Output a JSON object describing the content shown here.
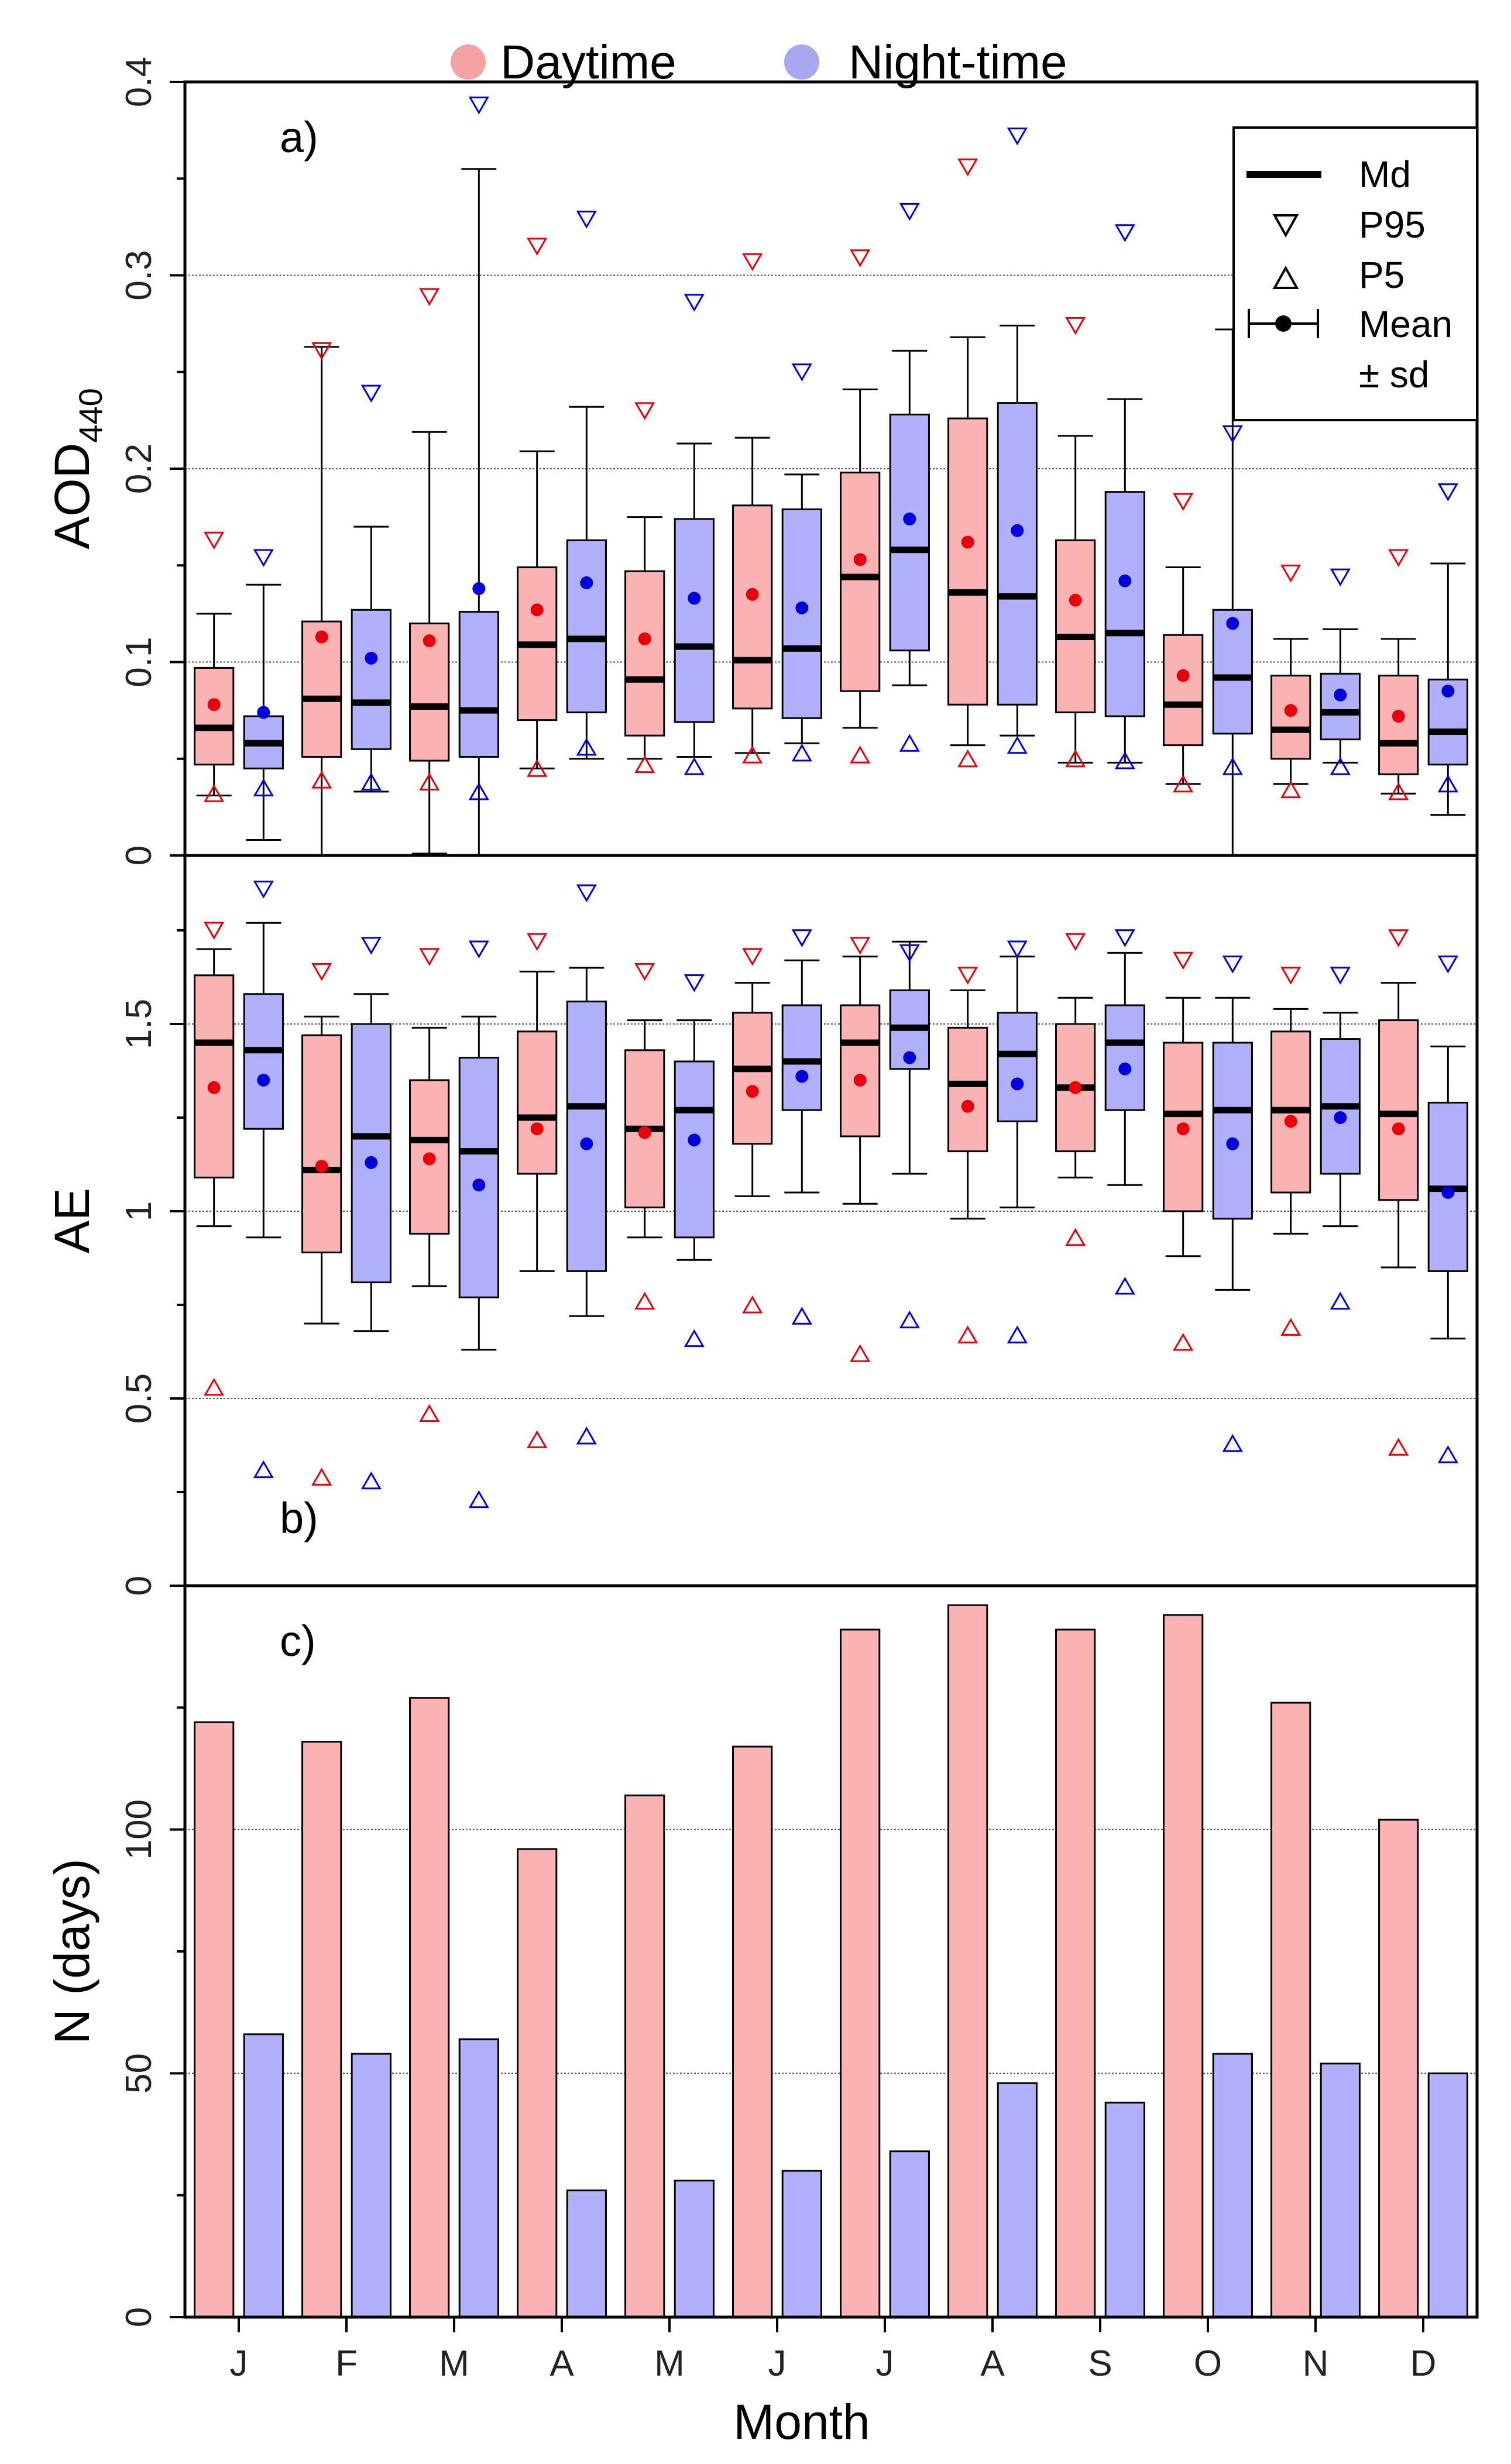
{
  "legend": {
    "daytime": "Daytime",
    "nighttime": "Night-time",
    "daytime_color": "#f4a3a3",
    "nighttime_color": "#a8a8f0",
    "day_mark_color": "#e8000b",
    "night_mark_color": "#0000dd",
    "md": "Md",
    "p95": "P95",
    "p5": "P5",
    "mean": "Mean",
    "sd": "± sd"
  },
  "xlabel": "Month",
  "chart_data": [
    {
      "id": "a",
      "type": "box",
      "panel_label": "a)",
      "ylabel_main": "AOD",
      "ylabel_sub": "440",
      "ylim": [
        0,
        0.4
      ],
      "yticks": [
        "0",
        "0.1",
        "0.2",
        "0.3",
        "0.4"
      ],
      "ytick_values": [
        0,
        0.1,
        0.2,
        0.3,
        0.4
      ],
      "minor_ticks": [
        0.05,
        0.15,
        0.25,
        0.35
      ],
      "gridlines": [
        0.1,
        0.2,
        0.3
      ],
      "categories": [
        "J",
        "F",
        "M",
        "A",
        "M",
        "J",
        "J",
        "A",
        "S",
        "O",
        "N",
        "D"
      ],
      "series": [
        {
          "name": "Daytime",
          "q1": [
            0.047,
            0.051,
            0.049,
            0.07,
            0.062,
            0.076,
            0.085,
            0.078,
            0.074,
            0.057,
            0.05,
            0.042
          ],
          "median": [
            0.066,
            0.081,
            0.077,
            0.109,
            0.091,
            0.101,
            0.144,
            0.136,
            0.113,
            0.078,
            0.065,
            0.058
          ],
          "q3": [
            0.097,
            0.121,
            0.12,
            0.149,
            0.147,
            0.181,
            0.198,
            0.226,
            0.163,
            0.114,
            0.093,
            0.093
          ],
          "mean": [
            0.078,
            0.113,
            0.111,
            0.127,
            0.112,
            0.135,
            0.153,
            0.162,
            0.132,
            0.093,
            0.075,
            0.072
          ],
          "sd_low": [
            0.031,
            0.0,
            0.001,
            0.045,
            0.05,
            0.053,
            0.066,
            0.057,
            0.048,
            0.037,
            0.037,
            0.032
          ],
          "sd_high": [
            0.125,
            0.263,
            0.219,
            0.209,
            0.175,
            0.216,
            0.241,
            0.268,
            0.217,
            0.149,
            0.112,
            0.112
          ],
          "p95": [
            0.163,
            0.261,
            0.289,
            0.315,
            0.23,
            0.307,
            0.309,
            0.356,
            0.274,
            0.183,
            0.146,
            0.154
          ],
          "p5": [
            0.032,
            0.039,
            0.038,
            0.045,
            0.047,
            0.052,
            0.052,
            0.05,
            0.05,
            0.037,
            0.034,
            0.033
          ]
        },
        {
          "name": "Night-time",
          "q1": [
            0.045,
            0.055,
            0.051,
            0.074,
            0.069,
            0.071,
            0.106,
            0.078,
            0.072,
            0.063,
            0.06,
            0.047
          ],
          "median": [
            0.058,
            0.079,
            0.075,
            0.112,
            0.108,
            0.107,
            0.158,
            0.134,
            0.115,
            0.092,
            0.074,
            0.064
          ],
          "q3": [
            0.072,
            0.127,
            0.126,
            0.163,
            0.174,
            0.179,
            0.228,
            0.234,
            0.188,
            0.127,
            0.094,
            0.091
          ],
          "mean": [
            0.074,
            0.102,
            0.138,
            0.141,
            0.133,
            0.128,
            0.174,
            0.168,
            0.142,
            0.12,
            0.083,
            0.085
          ],
          "sd_low": [
            0.008,
            0.033,
            0.0,
            0.05,
            0.051,
            0.058,
            0.088,
            0.062,
            0.048,
            0.0,
            0.048,
            0.021
          ],
          "sd_high": [
            0.14,
            0.17,
            0.355,
            0.232,
            0.213,
            0.197,
            0.261,
            0.274,
            0.236,
            0.272,
            0.117,
            0.151
          ],
          "p95": [
            0.154,
            0.239,
            0.388,
            0.329,
            0.286,
            0.25,
            0.333,
            0.372,
            0.322,
            0.218,
            0.144,
            0.188
          ],
          "p5": [
            0.035,
            0.038,
            0.033,
            0.056,
            0.046,
            0.053,
            0.058,
            0.057,
            0.049,
            0.046,
            0.046,
            0.037
          ]
        }
      ]
    },
    {
      "id": "b",
      "type": "box",
      "panel_label": "b)",
      "ylabel_main": "AE",
      "ylabel_sub": "",
      "ylim": [
        0,
        1.95
      ],
      "yticks": [
        "0",
        "0.5",
        "1",
        "1.5"
      ],
      "ytick_values": [
        0,
        0.5,
        1,
        1.5
      ],
      "minor_ticks": [
        0.25,
        0.75,
        1.25,
        1.75
      ],
      "gridlines": [
        0.5,
        1,
        1.5
      ],
      "categories": [
        "J",
        "F",
        "M",
        "A",
        "M",
        "J",
        "J",
        "A",
        "S",
        "O",
        "N",
        "D"
      ],
      "series": [
        {
          "name": "Daytime",
          "q1": [
            1.09,
            0.89,
            0.94,
            1.1,
            1.01,
            1.18,
            1.2,
            1.16,
            1.16,
            1.0,
            1.05,
            1.03
          ],
          "median": [
            1.45,
            1.11,
            1.19,
            1.25,
            1.22,
            1.38,
            1.45,
            1.34,
            1.33,
            1.26,
            1.27,
            1.26
          ],
          "q3": [
            1.63,
            1.47,
            1.35,
            1.48,
            1.43,
            1.53,
            1.55,
            1.49,
            1.5,
            1.45,
            1.48,
            1.51
          ],
          "mean": [
            1.33,
            1.12,
            1.14,
            1.22,
            1.21,
            1.32,
            1.35,
            1.28,
            1.33,
            1.22,
            1.24,
            1.22
          ],
          "sd_low": [
            0.96,
            0.7,
            0.8,
            0.84,
            0.93,
            1.04,
            1.02,
            0.98,
            1.09,
            0.88,
            0.94,
            0.85
          ],
          "sd_high": [
            1.7,
            1.52,
            1.49,
            1.64,
            1.51,
            1.61,
            1.68,
            1.59,
            1.57,
            1.57,
            1.54,
            1.61
          ],
          "p95": [
            1.75,
            1.64,
            1.68,
            1.72,
            1.64,
            1.68,
            1.71,
            1.63,
            1.72,
            1.67,
            1.63,
            1.73
          ],
          "p5": [
            0.53,
            0.29,
            0.46,
            0.39,
            0.76,
            0.75,
            0.62,
            0.67,
            0.93,
            0.65,
            0.69,
            0.37
          ]
        },
        {
          "name": "Night-time",
          "q1": [
            1.22,
            0.81,
            0.77,
            0.84,
            0.93,
            1.27,
            1.38,
            1.24,
            1.27,
            0.98,
            1.1,
            0.84
          ],
          "median": [
            1.43,
            1.2,
            1.16,
            1.28,
            1.27,
            1.4,
            1.49,
            1.42,
            1.45,
            1.27,
            1.28,
            1.06
          ],
          "q3": [
            1.58,
            1.5,
            1.41,
            1.56,
            1.4,
            1.55,
            1.59,
            1.53,
            1.55,
            1.45,
            1.46,
            1.29
          ],
          "mean": [
            1.35,
            1.13,
            1.07,
            1.18,
            1.19,
            1.36,
            1.41,
            1.34,
            1.38,
            1.18,
            1.25,
            1.05
          ],
          "sd_low": [
            0.93,
            0.68,
            0.63,
            0.72,
            0.87,
            1.05,
            1.1,
            1.01,
            1.07,
            0.79,
            0.96,
            0.66
          ],
          "sd_high": [
            1.77,
            1.58,
            1.52,
            1.65,
            1.51,
            1.67,
            1.72,
            1.68,
            1.69,
            1.57,
            1.53,
            1.44
          ],
          "p95": [
            1.86,
            1.71,
            1.7,
            1.85,
            1.61,
            1.73,
            1.69,
            1.7,
            1.73,
            1.66,
            1.63,
            1.66
          ],
          "p5": [
            0.31,
            0.28,
            0.23,
            0.4,
            0.66,
            0.72,
            0.71,
            0.67,
            0.8,
            0.38,
            0.76,
            0.35
          ]
        }
      ]
    },
    {
      "id": "c",
      "type": "bar",
      "panel_label": "c)",
      "ylabel_main": "N (days)",
      "ylabel_sub": "",
      "ylim": [
        0,
        150
      ],
      "yticks": [
        "0",
        "50",
        "100"
      ],
      "ytick_values": [
        0,
        50,
        100
      ],
      "minor_ticks": [
        25,
        75,
        125
      ],
      "gridlines": [
        50,
        100
      ],
      "categories": [
        "J",
        "F",
        "M",
        "A",
        "M",
        "J",
        "J",
        "A",
        "S",
        "O",
        "N",
        "D"
      ],
      "series": [
        {
          "name": "Daytime",
          "values": [
            122,
            118,
            127,
            96,
            107,
            117,
            141,
            146,
            141,
            144,
            126,
            102
          ]
        },
        {
          "name": "Night-time",
          "values": [
            58,
            54,
            57,
            26,
            28,
            30,
            34,
            48,
            44,
            54,
            52,
            50
          ]
        }
      ]
    }
  ]
}
